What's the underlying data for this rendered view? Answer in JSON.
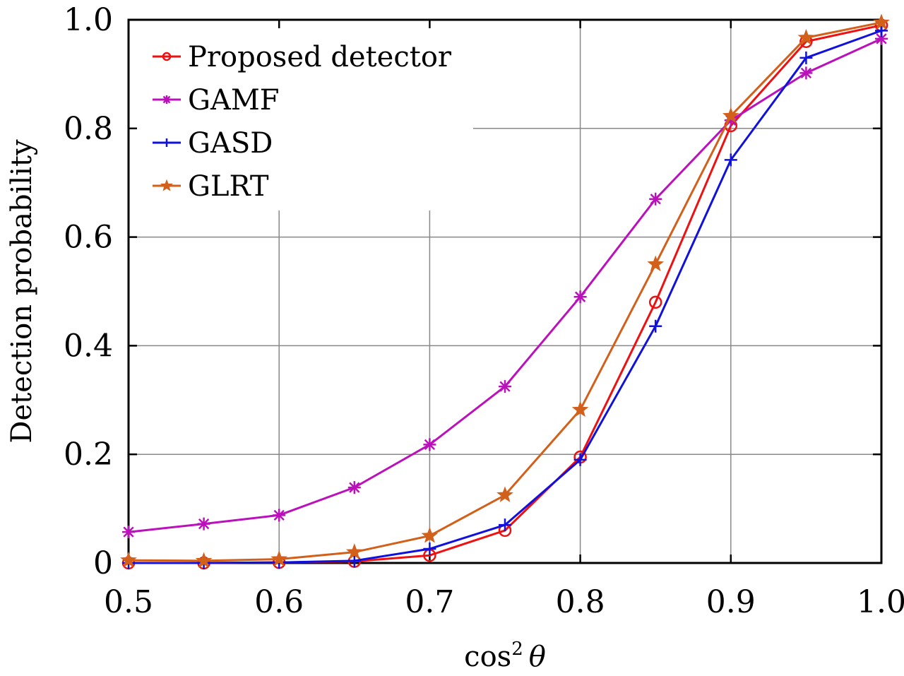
{
  "chart_data": {
    "type": "line",
    "xlabel_main": "cos",
    "xlabel_sup": "2",
    "xlabel_var": "θ",
    "ylabel": "Detection probability",
    "xlim": [
      0.5,
      1.0
    ],
    "ylim": [
      0,
      1.0
    ],
    "grid": true,
    "legend_position": "top-left",
    "x": [
      0.5,
      0.55,
      0.6,
      0.65,
      0.7,
      0.75,
      0.8,
      0.85,
      0.9,
      0.95,
      1.0
    ],
    "x_ticks": [
      "0.5",
      "0.6",
      "0.7",
      "0.8",
      "0.9",
      "1.0"
    ],
    "y_ticks": [
      "0",
      "0.2",
      "0.4",
      "0.6",
      "0.8",
      "1.0"
    ],
    "series": [
      {
        "name": "Proposed detector",
        "color": "#ee1111",
        "marker": "circle-icon",
        "values": [
          0.0,
          0.0,
          0.001,
          0.003,
          0.014,
          0.06,
          0.195,
          0.48,
          0.805,
          0.96,
          0.99
        ]
      },
      {
        "name": "GAMF",
        "color": "#bb11bb",
        "marker": "asterisk-icon",
        "values": [
          0.057,
          0.072,
          0.088,
          0.139,
          0.218,
          0.325,
          0.49,
          0.67,
          0.815,
          0.902,
          0.965
        ]
      },
      {
        "name": "GASD",
        "color": "#1111dd",
        "marker": "plus-icon",
        "values": [
          0.0,
          0.0,
          0.001,
          0.004,
          0.026,
          0.07,
          0.19,
          0.436,
          0.742,
          0.93,
          0.98
        ]
      },
      {
        "name": "GLRT",
        "color": "#d2601a",
        "marker": "star-icon",
        "values": [
          0.005,
          0.004,
          0.007,
          0.02,
          0.05,
          0.125,
          0.282,
          0.55,
          0.823,
          0.967,
          0.995
        ]
      }
    ]
  }
}
